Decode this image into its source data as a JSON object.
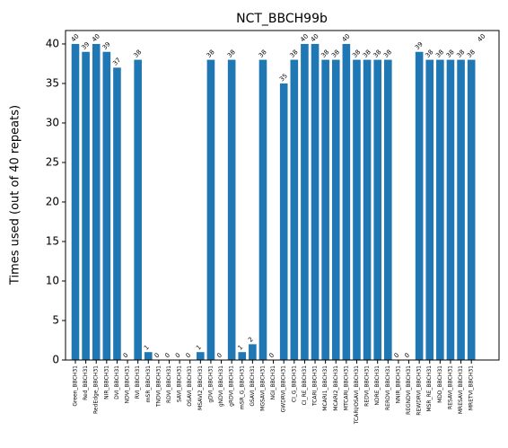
{
  "chart_data": {
    "type": "bar",
    "title": "NCT_BBCH99b",
    "y_label": "Times used (out of 40 repeats)",
    "categories": [
      "Green_BBCH31",
      "Red_BBCH31",
      "RedEdge_BBCH31",
      "NIR_BBCH31",
      "DVI_BBCH31",
      "NDVI_BBCH31",
      "RVI_BBCH31",
      "mSR_BBCH31",
      "TNDVI_BBCH31",
      "RDVI_BBCH31",
      "SAVI_BBCH31",
      "OSAVI_BBCH31",
      "MSAVI2_BBCH31",
      "gDVI_BBCH31",
      "gNDVI_BBCH31",
      "gRDVI_BBCH31",
      "mSR_G_BBCH31",
      "GSAVI_BBCH31",
      "MGSAVI_BBCH31",
      "NGI_BBCH31",
      "GWDRVI_BBCH31",
      "CI_G_BBCH31",
      "CI_RE_BBCH31",
      "TCARI_BBCH31",
      "MCARI1_BBCH31",
      "MCARI2_BBCH31",
      "MTCARI_BBCH31",
      "TCARI/OSAVI_BBCH31",
      "REDVI_BBCH31",
      "NDRE_BBCH31",
      "RERDVI_BBCH31",
      "NNIR_BBCH31",
      "REGNDVI_BBCH31",
      "REWDRVI_BBCH31",
      "MSR_RE_BBCH31",
      "MDD_BBCH31",
      "RESAVI_BBCH31",
      "MRESAVI_BBCH31",
      "MRETVI_BBCH31"
    ],
    "values": [
      40,
      39,
      40,
      39,
      37,
      0,
      38,
      1,
      0,
      0,
      0,
      0,
      1,
      38,
      0,
      38,
      1,
      2,
      38,
      0,
      35,
      38,
      40,
      40,
      38,
      38,
      40,
      38,
      38,
      38,
      38,
      0,
      0,
      39,
      38,
      38,
      38,
      38,
      38
    ],
    "annotations": [
      "40"
    ],
    "color": "#1f77b4",
    "ylim": [
      0,
      41.7
    ],
    "yticks": [
      0,
      5,
      10,
      15,
      20,
      25,
      30,
      35,
      40
    ]
  }
}
